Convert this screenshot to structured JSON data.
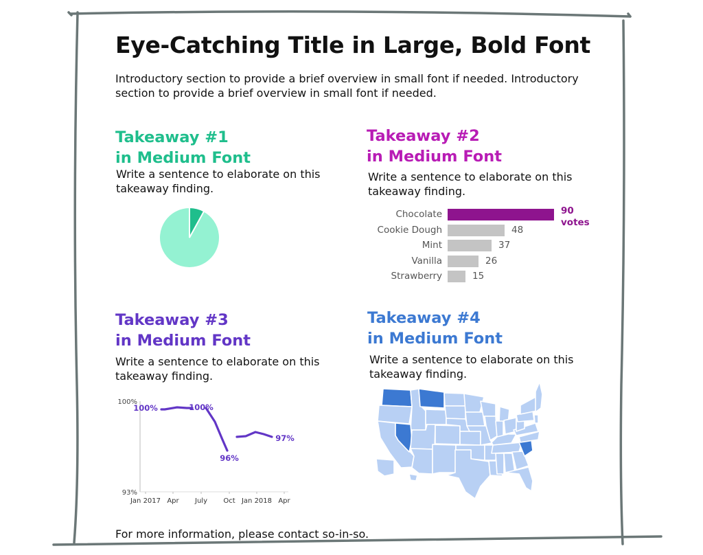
{
  "title": "Eye-Catching Title in Large, Bold Font",
  "intro": "Introductory section to provide a brief overview in small font if needed. Introductory section to provide a brief overview in small font if needed.",
  "takeaways": [
    {
      "title_line1": "Takeaway #1",
      "title_line2": "in Medium Font",
      "body": "Write a sentence to elaborate on this takeaway finding.",
      "color": "#1fbe8c"
    },
    {
      "title_line1": "Takeaway #2",
      "title_line2": "in Medium Font",
      "body": "Write a sentence to elaborate on this takeaway finding.",
      "color": "#b81cb5"
    },
    {
      "title_line1": "Takeaway #3",
      "title_line2": "in Medium Font",
      "body": "Write a sentence to elaborate on this takeaway finding.",
      "color": "#6236c6"
    },
    {
      "title_line1": "Takeaway #4",
      "title_line2": "in Medium Font",
      "body": "Write a sentence to elaborate on this takeaway finding.",
      "color": "#3c79d2"
    }
  ],
  "footer": "For more information, please contact so-in-so.",
  "chart_data": [
    {
      "type": "pie",
      "values": [
        8,
        92
      ],
      "colors": [
        "#1fbe8c",
        "#94f2d2"
      ]
    },
    {
      "type": "bar",
      "orientation": "horizontal",
      "categories": [
        "Chocolate",
        "Cookie Dough",
        "Mint",
        "Vanilla",
        "Strawberry"
      ],
      "values": [
        90,
        48,
        37,
        26,
        15
      ],
      "highlight_label": [
        "90",
        "votes"
      ],
      "colors": {
        "highlight": "#8e148e",
        "default": "#c4c4c4"
      }
    },
    {
      "type": "line",
      "x": [
        "2017-01",
        "2017-02",
        "2017-03",
        "2017-04",
        "2017-05",
        "2017-06",
        "2017-07",
        "2017-08",
        "2017-09",
        "2017-10",
        "2017-11",
        "2017-12",
        "2018-01",
        "2018-02",
        "2018-03"
      ],
      "y": [
        100,
        99.8,
        99.9,
        99.9,
        99.9,
        99.8,
        100,
        99.1,
        97.2,
        96,
        97.3,
        97.4,
        97.7,
        97.5,
        97
      ],
      "x_tick_labels": [
        "Jan 2017",
        "Apr",
        "July",
        "Oct",
        "Jan 2018",
        "Apr"
      ],
      "y_tick_labels": [
        "100%",
        "93%"
      ],
      "ylim": [
        93,
        100
      ],
      "annotations": [
        "100%",
        "100%",
        "96%",
        "97%"
      ],
      "color": "#6236c6"
    },
    {
      "type": "map",
      "region": "United States",
      "highlighted_states": [
        "Washington",
        "Montana",
        "Nevada",
        "South Carolina"
      ],
      "colors": {
        "highlight": "#3c79d2",
        "default": "#b8d0f4"
      }
    }
  ]
}
